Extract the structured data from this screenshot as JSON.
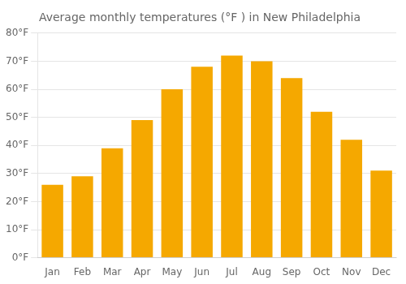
{
  "chart_data": {
    "type": "bar",
    "title": "Average monthly temperatures (°F ) in New Philadelphia",
    "categories": [
      "Jan",
      "Feb",
      "Mar",
      "Apr",
      "May",
      "Jun",
      "Jul",
      "Aug",
      "Sep",
      "Oct",
      "Nov",
      "Dec"
    ],
    "values": [
      26,
      29,
      39,
      49,
      60,
      68,
      72,
      70,
      64,
      52,
      42,
      31
    ],
    "color": "#F5A800",
    "ylim": [
      0,
      80
    ],
    "yticks": [
      {
        "value": 0,
        "label": "0°F"
      },
      {
        "value": 10,
        "label": "10°F"
      },
      {
        "value": 20,
        "label": "20°F"
      },
      {
        "value": 30,
        "label": "30°F"
      },
      {
        "value": 40,
        "label": "40°F"
      },
      {
        "value": 50,
        "label": "50°F"
      },
      {
        "value": 60,
        "label": "60°F"
      },
      {
        "value": 70,
        "label": "70°F"
      },
      {
        "value": 80,
        "label": "80°F"
      }
    ],
    "grid": true
  }
}
